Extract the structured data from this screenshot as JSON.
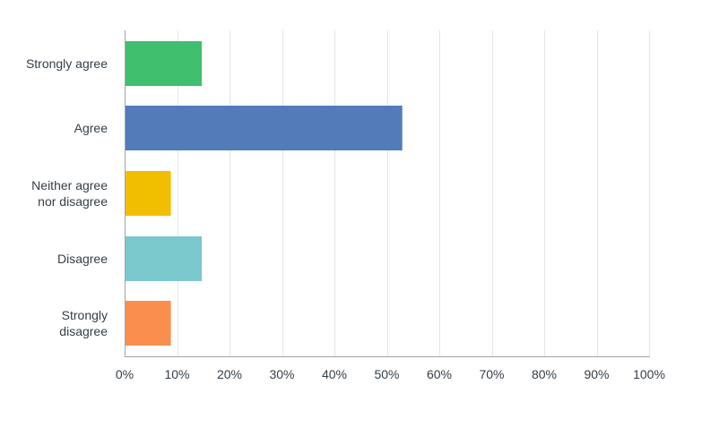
{
  "chart_data": {
    "type": "bar",
    "orientation": "horizontal",
    "categories": [
      [
        "Strongly agree"
      ],
      [
        "Agree"
      ],
      [
        "Neither agree",
        "nor disagree"
      ],
      [
        "Disagree"
      ],
      [
        "Strongly",
        "disagree"
      ]
    ],
    "values": [
      14.71,
      52.94,
      8.82,
      14.71,
      8.82
    ],
    "colors": [
      "#40bf6f",
      "#537bb9",
      "#f2be00",
      "#7ac8cc",
      "#f98e4e"
    ],
    "xlim": [
      0,
      100
    ],
    "xticks": [
      0,
      10,
      20,
      30,
      40,
      50,
      60,
      70,
      80,
      90,
      100
    ],
    "xtick_labels": [
      "0%",
      "10%",
      "20%",
      "30%",
      "40%",
      "50%",
      "60%",
      "70%",
      "80%",
      "90%",
      "100%"
    ],
    "grid": true,
    "legend": "none",
    "title": "",
    "xlabel": "",
    "ylabel": ""
  }
}
